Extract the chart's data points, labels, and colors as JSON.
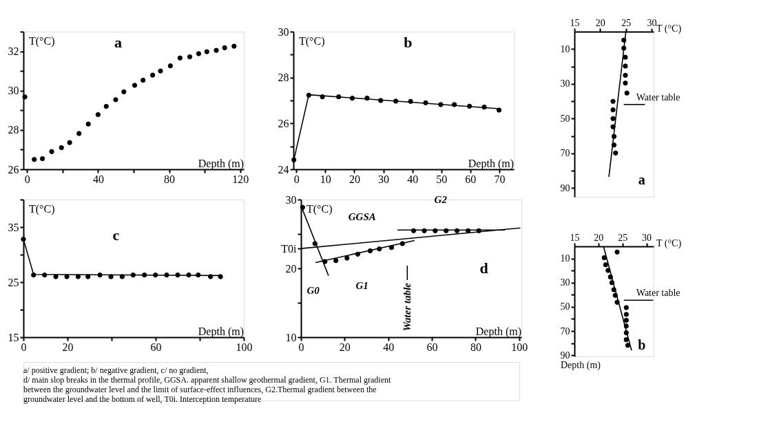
{
  "chart_data": [
    {
      "type": "scatter",
      "title": "a",
      "xlabel": "Depth (m)",
      "ylabel": "T(°C)",
      "xlim": [
        -2,
        122
      ],
      "xticks": [
        0,
        {
          "value": 20,
          "label": null
        },
        40,
        {
          "value": 60,
          "label": null
        },
        80,
        {
          "value": 100,
          "label": null
        },
        120
      ],
      "ylim": [
        26,
        33
      ],
      "yticks": [
        26,
        {
          "value": 27,
          "label": null
        },
        28,
        {
          "value": 29,
          "label": null
        },
        30,
        {
          "value": 31,
          "label": null
        },
        32,
        {
          "value": 33,
          "label": null
        }
      ],
      "series": [
        {
          "color": "#000000",
          "x": [
            -1.2,
            4.1,
            8.7,
            13.9,
            19.4,
            24.0,
            29.3,
            34.5,
            40.0,
            44.6,
            49.9,
            54.5,
            60.6,
            65.3,
            70.7,
            75.1,
            80.7,
            86.1,
            91.6,
            96.6,
            101.2,
            106.5,
            111.2,
            116.5
          ],
          "values": [
            29.68,
            26.5,
            26.54,
            26.9,
            27.1,
            27.36,
            27.82,
            28.3,
            28.78,
            29.2,
            29.54,
            29.94,
            30.27,
            30.53,
            30.79,
            31.0,
            31.26,
            31.66,
            31.72,
            31.88,
            31.98,
            32.05,
            32.18,
            32.26
          ]
        }
      ]
    },
    {
      "type": "scatter",
      "title": "b",
      "xlabel": "Depth (m)",
      "ylabel": "T(°C)",
      "xlim": [
        -1,
        75
      ],
      "xticks": [
        0,
        10,
        20,
        30,
        40,
        50,
        60,
        70
      ],
      "ylim": [
        24,
        30
      ],
      "yticks": [
        24,
        {
          "value": 25,
          "label": null
        },
        26,
        {
          "value": 27,
          "label": null
        },
        28,
        {
          "value": 29,
          "label": null
        },
        30
      ],
      "series": [
        {
          "color": "#000000",
          "x": [
            -0.85,
            4.3,
            9.0,
            14.6,
            19.3,
            24.4,
            29.1,
            34.3,
            39.4,
            44.6,
            49.8,
            54.5,
            59.7,
            64.8,
            69.9
          ],
          "values": [
            24.41,
            27.23,
            27.16,
            27.16,
            27.1,
            27.1,
            27.0,
            26.97,
            26.96,
            26.9,
            26.82,
            26.82,
            26.75,
            26.71,
            26.58
          ]
        },
        {
          "type": "line",
          "color": "#000000",
          "x": [
            -0.85,
            4.3,
            70
          ],
          "values": [
            24.41,
            27.25,
            26.64
          ]
        }
      ]
    },
    {
      "type": "scatter",
      "title": "c",
      "xlabel": "Depth (m)",
      "ylabel": "T(°C)",
      "xlim": [
        0,
        100
      ],
      "xticks": [
        0,
        20,
        {
          "value": 40,
          "label": null
        },
        60,
        {
          "value": 80,
          "label": null
        },
        100
      ],
      "ylim": [
        15,
        40
      ],
      "yticks": [
        15,
        {
          "value": 20,
          "label": null
        },
        25,
        {
          "value": 30,
          "label": null
        },
        35,
        {
          "value": 40,
          "label": null
        }
      ],
      "series": [
        {
          "color": "#000000",
          "x": [
            0,
            4.6,
            9.6,
            14.7,
            19.7,
            24.8,
            29.3,
            34.7,
            39.7,
            44.8,
            49.8,
            54.9,
            59.9,
            65,
            70,
            75,
            79.3,
            84.9,
            89.4
          ],
          "values": [
            32.8,
            26.3,
            26.3,
            26.0,
            26.0,
            26.0,
            26.0,
            26.3,
            26.0,
            26.0,
            26.3,
            26.3,
            26.3,
            26.3,
            26.3,
            26.3,
            26.3,
            26.0,
            26.0
          ]
        },
        {
          "type": "line",
          "color": "#000000",
          "x": [
            0,
            4.6,
            89.4
          ],
          "values": [
            32.8,
            26.4,
            26.2
          ]
        }
      ]
    },
    {
      "type": "scatter",
      "title": "d",
      "xlabel": "Depth (m)",
      "ylabel": "T(°C)",
      "xlim": [
        0,
        101
      ],
      "xticks": [
        0,
        20,
        40,
        60,
        80,
        100
      ],
      "ylim": [
        10,
        30
      ],
      "yticks": [
        10,
        {
          "value": 15,
          "label": null
        },
        20,
        {
          "value": 22.9,
          "label": "T0i"
        },
        {
          "value": 25,
          "label": null
        },
        30
      ],
      "annotations": [
        {
          "text": "G0",
          "x": 10,
          "y": 21
        },
        {
          "text": "G1",
          "x": 28,
          "y": 22.3
        },
        {
          "text": "GGSA",
          "x": 28,
          "y": 23.7
        },
        {
          "text": "G2",
          "x": 64,
          "y": 25.6
        }
      ],
      "series": [
        {
          "color": "#000000",
          "x": [
            0.76,
            6.4,
            11,
            16,
            21.1,
            26,
            31.7,
            35.9,
            41.5,
            46.5,
            51.6,
            56.5,
            61.5,
            66.5,
            71.5,
            76.6,
            81.5
          ],
          "values": [
            28.87,
            23.6,
            21.0,
            21.13,
            21.5,
            22.07,
            22.55,
            22.83,
            23.03,
            23.6,
            25.47,
            25.47,
            25.47,
            25.47,
            25.47,
            25.47,
            25.47
          ]
        },
        {
          "type": "line",
          "color": "#000000",
          "x": [
            0.6,
            12.6
          ],
          "values": [
            28.64,
            18.95
          ]
        },
        {
          "type": "line",
          "color": "#000000",
          "x": [
            0,
            100.5
          ],
          "values": [
            22.89,
            25.87
          ]
        },
        {
          "type": "line",
          "color": "#000000",
          "x": [
            6.7,
            52
          ],
          "values": [
            20.85,
            24.05
          ]
        },
        {
          "type": "line",
          "color": "#000000",
          "x": [
            44.2,
            93.5
          ],
          "values": [
            25.58,
            25.58
          ]
        },
        {
          "type": "line",
          "name": "Water table",
          "color": "#000000",
          "x": [
            48.7,
            48.7
          ],
          "values": [
            18.3,
            20.4
          ]
        }
      ]
    },
    {
      "type": "other",
      "annotations": [
        "a/ positive gradient; b/ negative gradient, c/ no gradient,",
        "d/ main slop breaks in the thermal profile, GGSA. apparent shallow geothermal gradient, G1. Thermal gradient",
        " between the groundwater level and the limit of surface-effect influences, G2.Thermal gradient between the",
        " groundwater level and the bottom of well, T0i. Interception temperature"
      ]
    },
    {
      "type": "scatter",
      "title": "a",
      "xlabel": "T (°C)",
      "xlim": [
        15,
        30.4
      ],
      "xticks": [
        15,
        20,
        25,
        30
      ],
      "ylim": [
        95,
        0
      ],
      "yticks": [
        10,
        {
          "value": 20,
          "label": null
        },
        30,
        {
          "value": 40,
          "label": null
        },
        50,
        {
          "value": 60,
          "label": null
        },
        70,
        {
          "value": 80,
          "label": null
        },
        90
      ],
      "series": [
        {
          "color": "#000000",
          "x": [
            24.6,
            24.6,
            24.9,
            24.9,
            24.9,
            24.9,
            25.2,
            22.5,
            22.5,
            22.5,
            22.5,
            22.7,
            22.7,
            23.0
          ],
          "values": [
            4.9,
            9.5,
            14.7,
            19.8,
            25.1,
            29.6,
            35.3,
            40.1,
            45,
            50,
            54.7,
            60.3,
            65.2,
            69.8
          ]
        },
        {
          "type": "line",
          "color": "#000000",
          "x": [
            25.0,
            21.7
          ],
          "values": [
            0,
            83.5
          ]
        },
        {
          "type": "line",
          "name": "Water table",
          "color": "#000000",
          "x": [
            24.6,
            28.7
          ],
          "values": [
            41.9,
            41.9
          ]
        }
      ]
    },
    {
      "type": "scatter",
      "title": "b",
      "xlabel": "T (°C)",
      "ylabel": "Depth (m)",
      "xlim": [
        15,
        31.5
      ],
      "xticks": [
        15,
        20,
        25,
        30
      ],
      "ylim": [
        91,
        0
      ],
      "yticks": [
        10,
        {
          "value": 20,
          "label": null
        },
        30,
        {
          "value": 40,
          "label": null
        },
        50,
        {
          "value": 60,
          "label": null
        },
        70,
        {
          "value": 80,
          "label": null
        },
        90
      ],
      "series": [
        {
          "color": "#000000",
          "x": [
            23.9,
            21.2,
            21.5,
            22,
            22.5,
            22.8,
            23.2,
            23.5,
            23.9,
            25.8,
            25.8,
            25.8,
            25.8,
            25.8,
            25.8,
            26.1
          ],
          "values": [
            4.7,
            9.4,
            15.2,
            19.9,
            25.3,
            30.0,
            35.8,
            40.5,
            46.2,
            50.6,
            56.2,
            61.1,
            65.8,
            71.4,
            77.1,
            81.8
          ]
        },
        {
          "type": "line",
          "color": "#000000",
          "x": [
            21.05,
            26.9
          ],
          "values": [
            0,
            86
          ]
        },
        {
          "type": "line",
          "name": "Water  table",
          "color": "#000000",
          "x": [
            25.3,
            31.4
          ],
          "values": [
            44.5,
            44.5
          ]
        }
      ]
    }
  ]
}
